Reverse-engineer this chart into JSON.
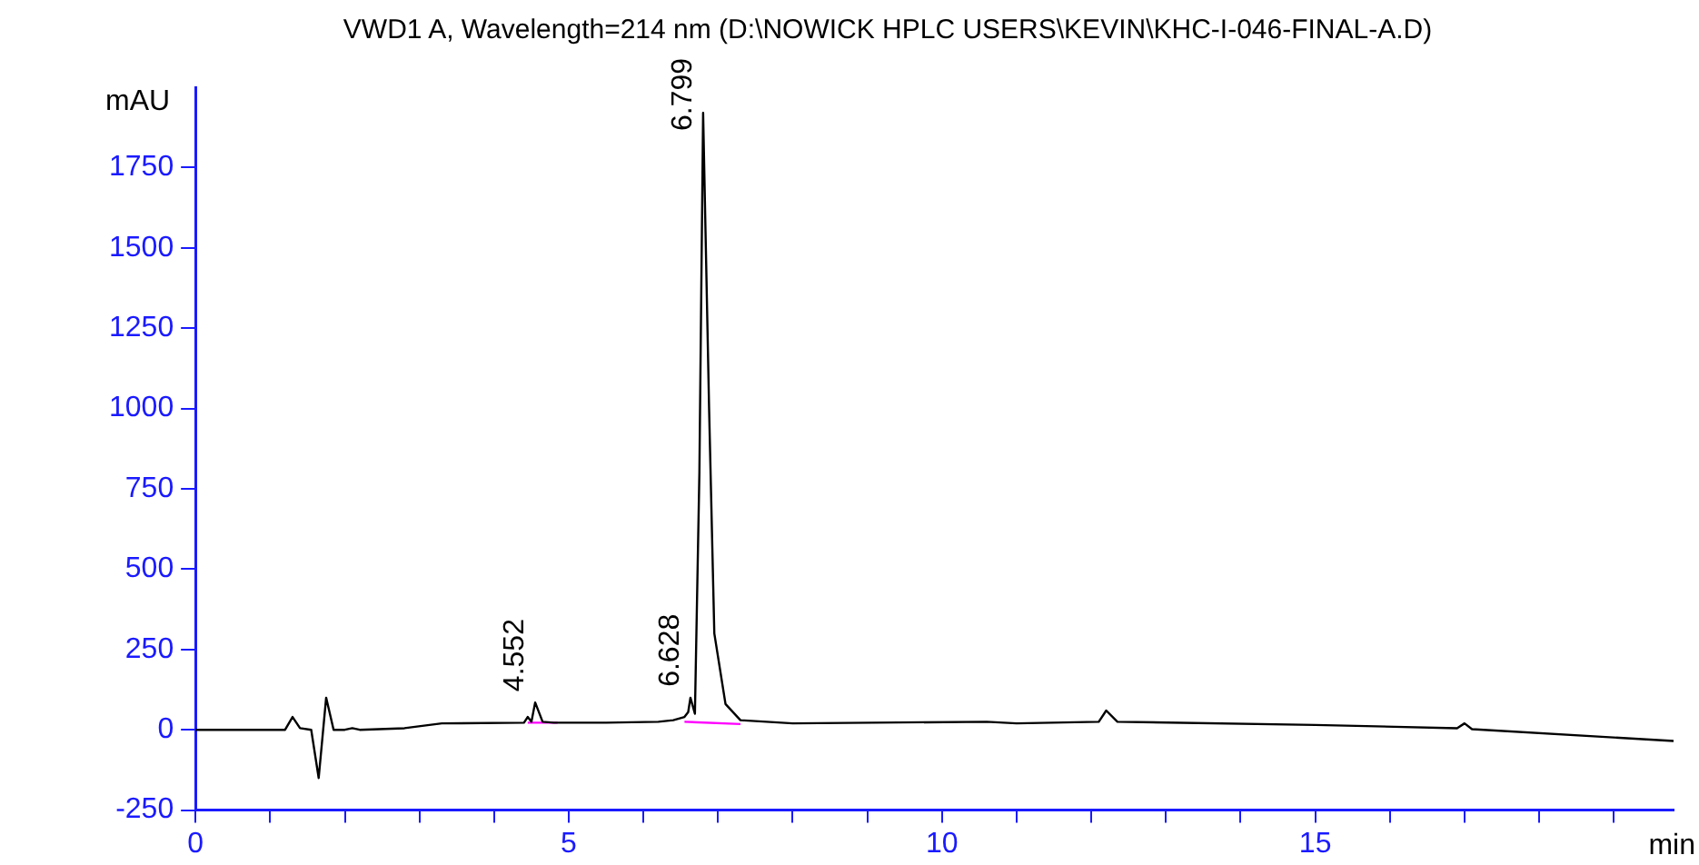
{
  "chart_data": {
    "type": "line",
    "title": "VWD1 A, Wavelength=214 nm (D:\\NOWICK HPLC USERS\\KEVIN\\KHC-I-046-FINAL-A.D)",
    "xlabel": "min",
    "ylabel": "mAU",
    "series": [
      {
        "color": "#000000",
        "x": [
          0,
          1.2,
          1.3,
          1.4,
          1.55,
          1.65,
          1.75,
          1.85,
          2.0,
          2.1,
          2.2,
          2.8,
          3.3,
          4.4,
          4.45,
          4.5,
          4.55,
          4.65,
          4.8,
          5.5,
          6.2,
          6.4,
          6.55,
          6.6,
          6.63,
          6.69,
          6.75,
          6.8,
          6.88,
          6.95,
          7.1,
          7.3,
          8,
          10.6,
          11,
          12.1,
          12.2,
          12.35,
          15,
          16.9,
          17.0,
          17.1,
          19.8
        ],
        "values": [
          0,
          0,
          40,
          5,
          0,
          -150,
          100,
          0,
          0,
          5,
          0,
          5,
          20,
          22,
          40,
          25,
          85,
          25,
          22,
          22,
          25,
          30,
          40,
          55,
          100,
          50,
          800,
          1920,
          1000,
          300,
          80,
          30,
          20,
          25,
          20,
          25,
          60,
          25,
          15,
          5,
          20,
          2,
          -35
        ]
      },
      {
        "color": "#ff00ff",
        "x": [
          4.45,
          4.85
        ],
        "values": [
          22,
          22
        ]
      },
      {
        "color": "#ff00ff",
        "x": [
          6.55,
          7.3
        ],
        "values": [
          25,
          18
        ]
      }
    ],
    "xlim": [
      0,
      19.8
    ],
    "ylim": [
      -250,
      2000
    ],
    "xticks": [
      0,
      {
        "value": 1,
        "label": null
      },
      {
        "value": 2,
        "label": null
      },
      {
        "value": 3,
        "label": null
      },
      {
        "value": 4,
        "label": null
      },
      5,
      {
        "value": 6,
        "label": null
      },
      {
        "value": 7,
        "label": null
      },
      {
        "value": 8,
        "label": null
      },
      {
        "value": 9,
        "label": null
      },
      10,
      {
        "value": 11,
        "label": null
      },
      {
        "value": 12,
        "label": null
      },
      {
        "value": 13,
        "label": null
      },
      {
        "value": 14,
        "label": null
      },
      15,
      {
        "value": 16,
        "label": null
      },
      {
        "value": 17,
        "label": null
      },
      {
        "value": 18,
        "label": null
      },
      {
        "value": 19,
        "label": null
      }
    ],
    "yticks": [
      -250,
      0,
      250,
      500,
      750,
      1000,
      1250,
      1500,
      1750
    ],
    "annotations": [
      {
        "text": "4.552",
        "x": 4.552,
        "y": 85
      },
      {
        "text": "6.628",
        "x": 6.628,
        "y": 100
      },
      {
        "text": "6.799",
        "x": 6.799,
        "y": 1920
      }
    ],
    "grid": false,
    "legend": false,
    "marker": "none",
    "line_style": "solid"
  }
}
